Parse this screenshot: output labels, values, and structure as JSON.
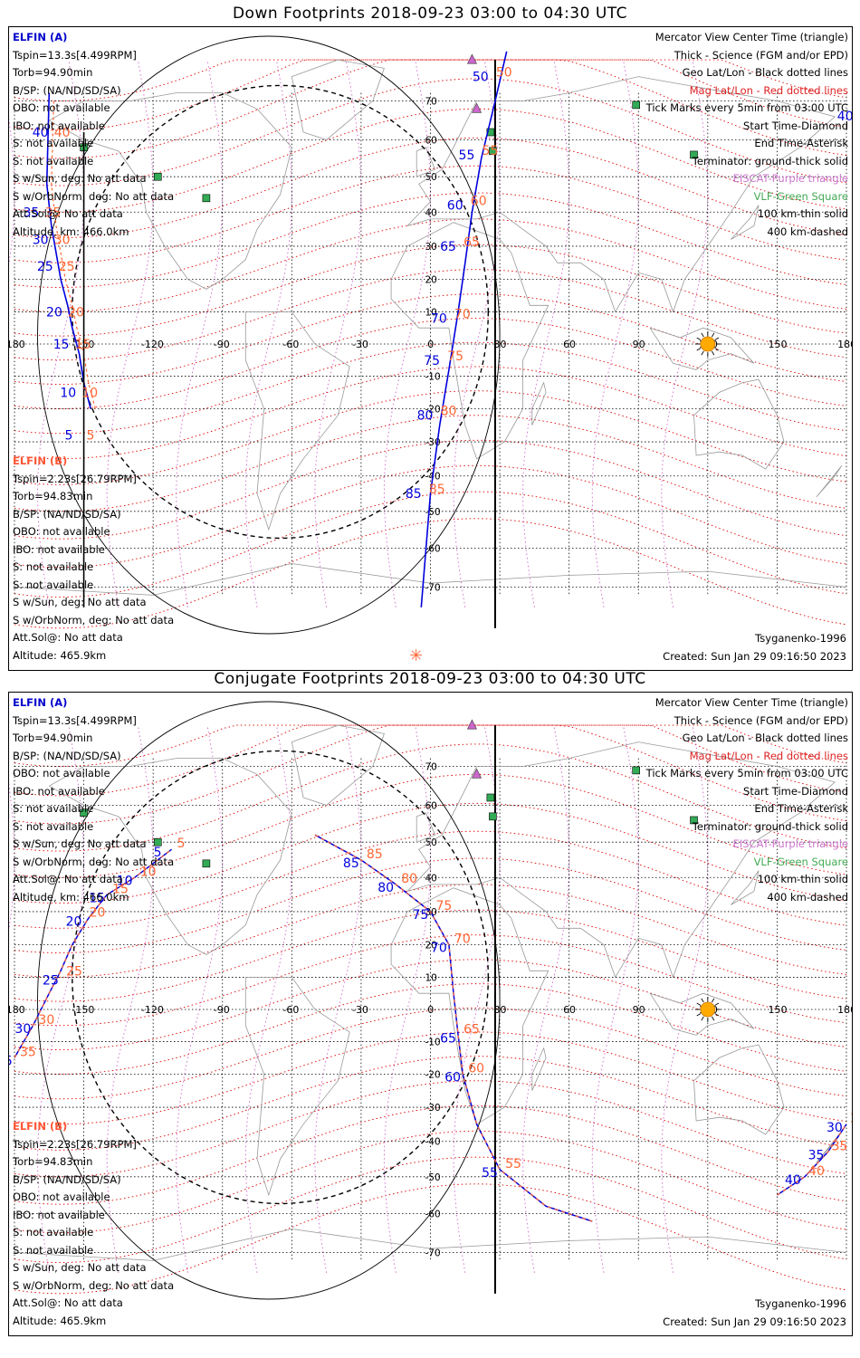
{
  "panels": [
    {
      "id": "down",
      "title": "Down Footprints 2018-09-23 03:00 to 04:30 UTC",
      "a": {
        "name": "ELFIN (A)",
        "lines": [
          "Tspin=13.3s[4.499RPM]",
          "Torb=94.90min",
          "B/SP: (NA/ND/SD/SA)",
          "OBO: not available",
          "IBO: not available",
          "S: not available",
          "S: not available",
          "S w/Sun, deg: No att data",
          "S w/OrbNorm, deg: No att data",
          "Att.Sol@: No att data",
          "Altitude, km: 466.0km"
        ]
      },
      "b": {
        "name": "ELFIN (B)",
        "lines": [
          "Tspin=2.23s[26.79RPM]",
          "Torb=94.83min",
          "B/SP: (NA/ND/SD/SA)",
          "OBO: not available",
          "IBO: not available",
          "S: not available",
          "S: not available",
          "S w/Sun, deg: No att data",
          "S w/OrbNorm, deg: No att data",
          "Att.Sol@: No att data",
          "Altitude: 465.9km"
        ]
      },
      "legend": [
        "Mercator View Center Time (triangle)",
        "Thick - Science (FGM and/or EPD)",
        "Geo Lat/Lon - Black dotted lines",
        "Mag Lat/Lon - Red dotted lines",
        "Tick Marks every 5min from 03:00 UTC",
        "Start Time-Diamond",
        "End Time-Asterisk",
        "Terminator: ground-thick solid",
        "EISCAT-Purple triangle",
        "VLF-Green Square",
        "100 km-thin solid",
        "400 km-dashed"
      ],
      "model": "Tsyganenko-1996",
      "created": "Created: Sun Jan 29 09:16:50 2023",
      "track_a": [
        [
          -163,
          48,
          "40"
        ],
        [
          -166,
          36,
          "35"
        ],
        [
          -162,
          30,
          "30"
        ],
        [
          -160,
          25,
          "25"
        ],
        [
          -157,
          20,
          "20"
        ],
        [
          -155,
          15,
          "15"
        ],
        [
          -152,
          10,
          "10"
        ],
        [
          -150,
          5,
          "5"
        ],
        [
          8,
          55,
          "50"
        ],
        [
          10,
          45,
          "55"
        ],
        [
          13,
          35,
          "60"
        ],
        [
          15,
          25,
          "65"
        ],
        [
          16,
          12,
          "70"
        ],
        [
          17,
          -2,
          "75"
        ],
        [
          18,
          -15,
          "80"
        ],
        [
          21,
          -27,
          "85"
        ]
      ],
      "track_b_note": "",
      "orbit_a": [
        [
          -166,
          60
        ],
        [
          -166,
          40
        ],
        [
          -164,
          30
        ],
        [
          -162,
          25
        ],
        [
          -160,
          18
        ],
        [
          -157,
          12
        ],
        [
          -155,
          5
        ],
        [
          -152,
          -2
        ],
        [
          -150,
          -10
        ],
        [
          -148,
          -18
        ]
      ],
      "orbit_a2": [
        [
          25,
          78
        ],
        [
          22,
          65
        ],
        [
          19,
          55
        ],
        [
          17,
          45
        ],
        [
          15,
          35
        ],
        [
          13,
          25
        ],
        [
          11,
          15
        ],
        [
          9,
          5
        ],
        [
          7,
          -5
        ],
        [
          5,
          -15
        ],
        [
          3,
          -25
        ],
        [
          0,
          -35
        ]
      ]
    },
    {
      "id": "conj",
      "title": "Conjugate Footprints 2018-09-23 03:00 to 04:30 UTC",
      "a": {
        "name": "ELFIN (A)",
        "lines": [
          "Tspin=13.3s[4.499RPM]",
          "Torb=94.90min",
          "B/SP: (NA/ND/SD/SA)",
          "OBO: not available",
          "IBO: not available",
          "S: not available",
          "S: not available",
          "S w/Sun, deg: No att data",
          "S w/OrbNorm, deg: No att data",
          "Att.Sol@: No att data",
          "Altitude, km: 466.0km"
        ]
      },
      "b": {
        "name": "ELFIN (B)",
        "lines": [
          "Tspin=2.23s[26.79RPM]",
          "Torb=94.83min",
          "B/SP: (NA/ND/SD/SA)",
          "OBO: not available",
          "IBO: not available",
          "S: not available",
          "S: not available",
          "S w/Sun, deg: No att data",
          "S w/OrbNorm, deg: No att data",
          "Att.Sol@: No att data",
          "Altitude: 465.9km"
        ]
      },
      "legend": [
        "Mercator View Center Time (triangle)",
        "Thick - Science (FGM and/or EPD)",
        "Geo Lat/Lon - Black dotted lines",
        "Mag Lat/Lon - Red dotted lines",
        "Tick Marks every 5min from 03:00 UTC",
        "Start Time-Diamond",
        "End Time-Asterisk",
        "Terminator: ground-thick solid",
        "EISCAT-Purple triangle",
        "VLF-Green Square",
        "100 km-thin solid",
        "400 km-dashed"
      ],
      "model": "Tsyganenko-1996",
      "created": "Created: Sun Jan 29 09:16:50 2023"
    }
  ],
  "lon_ticks": [
    "-180",
    "-150",
    "-120",
    "-90",
    "-60",
    "-30",
    "0",
    "30",
    "60",
    "90",
    "120",
    "150",
    "180"
  ],
  "lat_ticks": [
    "70",
    "60",
    "50",
    "40",
    "30",
    "20",
    "10",
    "-10",
    "-20",
    "-30",
    "-40",
    "-50",
    "-60",
    "-70"
  ],
  "colors": {
    "sat_a": "#0000dd",
    "sat_b": "#ff6633",
    "geo_grid": "#000000",
    "mag_grid": "#dd0000",
    "eiscat": "#cc66cc",
    "vlf": "#33aa55",
    "sun": "#ffaa00"
  },
  "down_track_a_labels": [
    "50",
    "55",
    "60",
    "65",
    "70",
    "75",
    "80",
    "85",
    "40",
    "35",
    "30",
    "25",
    "20",
    "15",
    "10",
    "5"
  ],
  "down_track_b_labels": [
    "50",
    "55",
    "60",
    "65",
    "70",
    "75",
    "80",
    "85",
    "40",
    "35",
    "30",
    "25",
    "20",
    "15",
    "10",
    "5"
  ],
  "conj_track_labels_a": [
    "5",
    "10",
    "15",
    "20",
    "25",
    "30",
    "35",
    "40",
    "55",
    "60",
    "65",
    "70",
    "75",
    "80",
    "85"
  ],
  "conj_track_labels_b": [
    "5",
    "10",
    "15",
    "20",
    "25",
    "30",
    "35",
    "40",
    "55",
    "60",
    "65",
    "70",
    "75",
    "80",
    "85"
  ]
}
